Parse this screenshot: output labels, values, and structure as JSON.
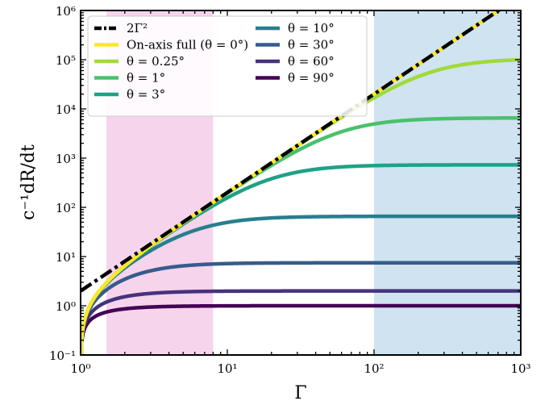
{
  "chart_data": {
    "type": "line",
    "xlabel": "Γ",
    "ylabel": "c⁻¹dR/dt",
    "xscale": "log",
    "yscale": "log",
    "xlim": [
      1,
      1000
    ],
    "ylim": [
      0.1,
      1000000
    ],
    "x_ticks": [
      {
        "value": 1,
        "label": "10⁰"
      },
      {
        "value": 10,
        "label": "10¹"
      },
      {
        "value": 100,
        "label": "10²"
      },
      {
        "value": 1000,
        "label": "10³"
      }
    ],
    "y_ticks": [
      {
        "value": 0.1,
        "label": "10⁻¹"
      },
      {
        "value": 1,
        "label": "10⁰"
      },
      {
        "value": 10,
        "label": "10¹"
      },
      {
        "value": 100,
        "label": "10²"
      },
      {
        "value": 1000,
        "label": "10³"
      },
      {
        "value": 10000,
        "label": "10⁴"
      },
      {
        "value": 100000,
        "label": "10⁵"
      },
      {
        "value": 1000000,
        "label": "10⁶"
      }
    ],
    "shaded_regions": [
      {
        "x": [
          1.5,
          8
        ],
        "color": "#f6d4eb"
      },
      {
        "x": [
          100,
          1000
        ],
        "color": "#cfe3f0"
      }
    ],
    "legend_position": "upper-left",
    "legend_columns": 2,
    "series": [
      {
        "name": "2Γ²",
        "theta_deg": null,
        "color": "#000000",
        "style": "dashdot"
      },
      {
        "name": "On-axis full (θ = 0°)",
        "theta_deg": 0,
        "color": "#fde725",
        "style": "solid"
      },
      {
        "name": "θ = 0.25°",
        "theta_deg": 0.25,
        "color": "#a0da39",
        "style": "solid"
      },
      {
        "name": "θ = 1°",
        "theta_deg": 1,
        "color": "#4ac16d",
        "style": "solid"
      },
      {
        "name": "θ = 3°",
        "theta_deg": 3,
        "color": "#1fa187",
        "style": "solid"
      },
      {
        "name": "θ = 10°",
        "theta_deg": 10,
        "color": "#277f8e",
        "style": "solid"
      },
      {
        "name": "θ = 30°",
        "theta_deg": 30,
        "color": "#365c8d",
        "style": "solid"
      },
      {
        "name": "θ = 60°",
        "theta_deg": 60,
        "color": "#46327e",
        "style": "solid"
      },
      {
        "name": "θ = 90°",
        "theta_deg": 90,
        "color": "#440154",
        "style": "solid"
      }
    ]
  }
}
